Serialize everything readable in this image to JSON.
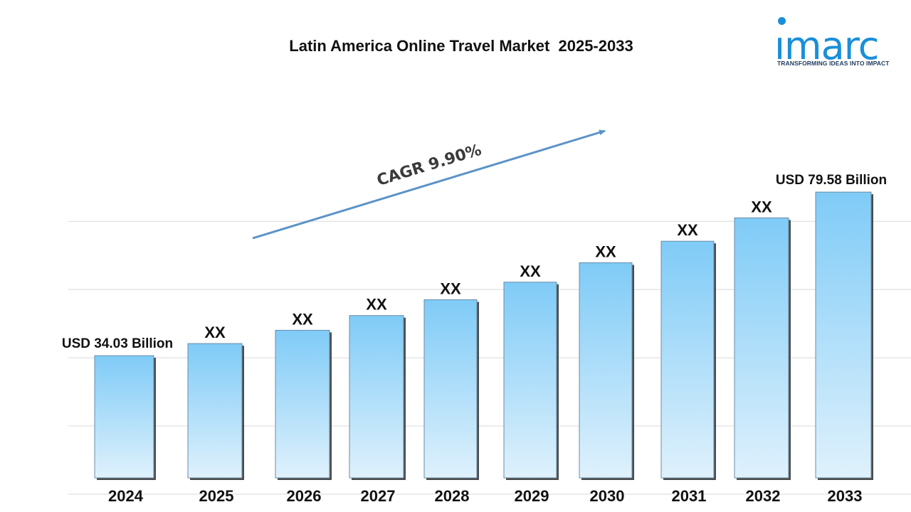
{
  "logo": {
    "word": "ımarc",
    "tagline": "TRANSFORMING IDEAS INTO IMPACT"
  },
  "chart_data": {
    "type": "bar",
    "title": "Latin America Online Travel Market  2025-2033",
    "xlabel": "",
    "ylabel": "",
    "categories": [
      "2024",
      "2025",
      "2026",
      "2027",
      "2028",
      "2029",
      "2030",
      "2031",
      "2032",
      "2033"
    ],
    "values": [
      34.03,
      37.4,
      41.1,
      45.2,
      49.6,
      54.5,
      59.9,
      65.9,
      72.4,
      79.58
    ],
    "data_labels": [
      "USD 34.03 Billion",
      "XX",
      "XX",
      "XX",
      "XX",
      "XX",
      "XX",
      "XX",
      "XX",
      "USD 79.58 Billion"
    ],
    "unit": "USD Billion",
    "cagr_label": "CAGR  9.90%",
    "ylim": [
      0,
      92
    ],
    "grid": true,
    "bar_color_top": "#7fcbf7",
    "bar_color_bottom": "#dff1fc",
    "arrow_color": "#5b93c7"
  }
}
